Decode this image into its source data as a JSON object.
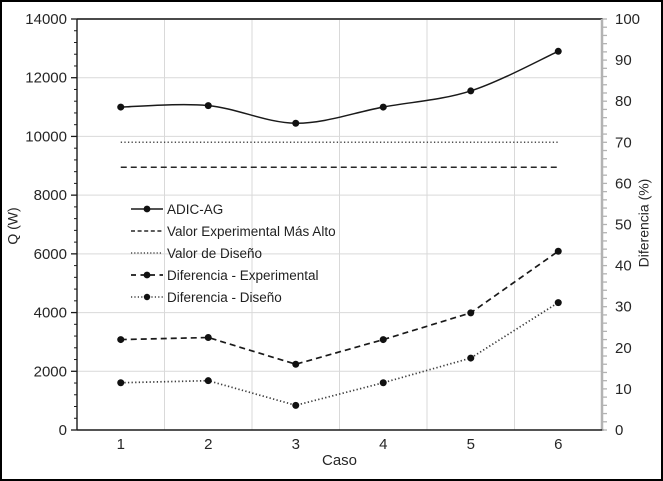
{
  "chart_data": {
    "type": "line",
    "title": "",
    "x_axis": {
      "label": "Caso",
      "categories": [
        "1",
        "2",
        "3",
        "4",
        "5",
        "6"
      ]
    },
    "left_axis": {
      "label": "Q (W)",
      "min": 0,
      "max": 14000,
      "step": 2000,
      "minor_step": 400,
      "tick_labels": [
        "0",
        "2000",
        "4000",
        "6000",
        "8000",
        "10000",
        "12000",
        "14000"
      ]
    },
    "right_axis": {
      "label": "Diferencia (%)",
      "min": 0,
      "max": 100,
      "step": 10,
      "minor_step": 2,
      "tick_labels": [
        "0",
        "10",
        "20",
        "30",
        "40",
        "50",
        "60",
        "70",
        "80",
        "90",
        "100"
      ]
    },
    "grid": {
      "horizontal": true,
      "vertical": true
    },
    "legend_position": "inside-left",
    "series": [
      {
        "name": "ADIC-AG",
        "axis": "left",
        "style": "solid",
        "marker": true,
        "smooth": true,
        "color": "#1a1a1a",
        "values": [
          11000,
          11050,
          10450,
          11000,
          11550,
          12900
        ]
      },
      {
        "name": "Valor Experimental Más Alto",
        "axis": "left",
        "style": "dashed",
        "marker": false,
        "smooth": false,
        "color": "#262626",
        "values": [
          8950,
          8950,
          8950,
          8950,
          8950,
          8950
        ]
      },
      {
        "name": "Valor de Diseño",
        "axis": "left",
        "style": "dotted",
        "marker": false,
        "smooth": false,
        "color": "#4d4d4d",
        "values": [
          9800,
          9800,
          9800,
          9800,
          9800,
          9800
        ]
      },
      {
        "name": "Diferencia - Experimental",
        "axis": "right",
        "style": "dashed",
        "marker": true,
        "smooth": false,
        "color": "#1a1a1a",
        "values": [
          22,
          22.5,
          16,
          22,
          28.5,
          43.5
        ]
      },
      {
        "name": "Diferencia - Diseño",
        "axis": "right",
        "style": "dotted",
        "marker": true,
        "smooth": false,
        "color": "#3d3d3d",
        "values": [
          11.5,
          12,
          6,
          11.5,
          17.5,
          31
        ]
      }
    ],
    "colors": {
      "background": "#ffffff",
      "gridline": "#d9d9d9",
      "axis_line": "#1a1a1a",
      "right_axis_line": "#b3b3b3",
      "top_border_line": "#4a4a4a",
      "tick_text": "#262626",
      "marker_fill": "#111111"
    }
  }
}
